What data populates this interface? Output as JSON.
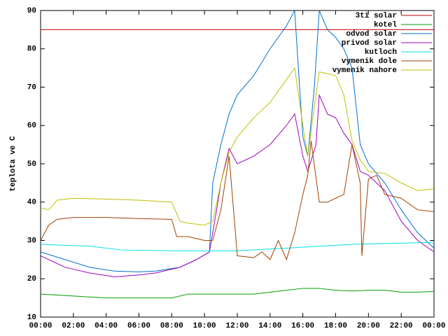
{
  "chart_data": {
    "type": "line",
    "ylabel": "teplota ve C",
    "xlim": [
      0,
      24
    ],
    "ylim": [
      10,
      90
    ],
    "xticks": [
      {
        "value": 0,
        "label": "00:00"
      },
      {
        "value": 2,
        "label": "02:00"
      },
      {
        "value": 4,
        "label": "04:00"
      },
      {
        "value": 6,
        "label": "06:00"
      },
      {
        "value": 8,
        "label": "08:00"
      },
      {
        "value": 10,
        "label": "10:00"
      },
      {
        "value": 12,
        "label": "12:00"
      },
      {
        "value": 14,
        "label": "14:00"
      },
      {
        "value": 16,
        "label": "16:00"
      },
      {
        "value": 18,
        "label": "18:00"
      },
      {
        "value": 20,
        "label": "20:00"
      },
      {
        "value": 22,
        "label": "22:00"
      },
      {
        "value": 24,
        "label": "00:00"
      }
    ],
    "yticks": [
      10,
      20,
      30,
      40,
      50,
      60,
      70,
      80,
      90
    ],
    "legend": "top-right",
    "series": [
      {
        "name": "3ti solar",
        "color": "#c00000",
        "x": [
          0,
          24
        ],
        "values": [
          85,
          85
        ]
      },
      {
        "name": "kotel",
        "color": "#00a000",
        "x": [
          0,
          2,
          4,
          8,
          9,
          13,
          14,
          15,
          16,
          17,
          18,
          19,
          20,
          21,
          22,
          23,
          24
        ],
        "values": [
          16,
          15.5,
          15,
          15,
          16,
          16,
          16.5,
          17,
          17.5,
          17.5,
          17,
          16.8,
          17,
          17,
          16.5,
          16.5,
          16.7
        ]
      },
      {
        "name": "odvod solar",
        "color": "#0070d0",
        "x": [
          0,
          1.5,
          3,
          4.5,
          6,
          7,
          8.5,
          9.5,
          10.3,
          10.5,
          11,
          11.5,
          12,
          13,
          14,
          15,
          15.5,
          16,
          16.3,
          16.7,
          17,
          17.5,
          18,
          18.5,
          19,
          19.5,
          20,
          21,
          22,
          23,
          24
        ],
        "values": [
          27,
          25,
          23,
          22,
          21.8,
          22,
          23,
          25,
          27,
          45,
          55,
          63,
          68,
          73,
          80,
          86,
          90,
          57,
          52,
          70,
          90,
          85,
          83,
          80,
          75,
          55,
          50,
          45,
          38,
          32,
          28
        ]
      },
      {
        "name": "privod solar",
        "color": "#a000c0",
        "x": [
          0,
          1.5,
          3,
          4.5,
          6,
          7,
          8.5,
          9.5,
          10.3,
          10.7,
          11,
          11.5,
          12,
          13,
          14,
          15,
          15.5,
          16,
          16.3,
          16.8,
          17,
          17.5,
          18,
          18.5,
          19,
          19.5,
          20,
          21,
          22,
          23,
          24
        ],
        "values": [
          26,
          23,
          21.5,
          20.5,
          21,
          21.5,
          23,
          25,
          27,
          37,
          45,
          54,
          50,
          52,
          55,
          60,
          63,
          52,
          48,
          55,
          68,
          63,
          62,
          58,
          55,
          48,
          47,
          43,
          35,
          30,
          27
        ]
      },
      {
        "name": "kutloch",
        "color": "#00e0e0",
        "x": [
          0,
          3,
          5,
          8,
          12,
          15,
          17,
          19,
          22,
          24
        ],
        "values": [
          29,
          28.5,
          27.5,
          27.3,
          27.3,
          28,
          28.5,
          29,
          29.3,
          29.5
        ]
      },
      {
        "name": "vymenik dole",
        "color": "#a04000",
        "x": [
          0,
          0.5,
          1,
          2,
          4,
          6,
          8,
          8.3,
          9,
          10,
          10.5,
          11,
          11.5,
          12,
          13,
          13.5,
          14,
          14.5,
          15,
          15.5,
          16,
          16.3,
          16.5,
          17,
          17.5,
          18.5,
          19,
          19.5,
          19.6,
          20,
          20.5,
          21,
          22,
          23,
          24
        ],
        "values": [
          30,
          34,
          35.5,
          36,
          36,
          35.7,
          35.5,
          31,
          31,
          30,
          30,
          38,
          52,
          26,
          25.5,
          27,
          25,
          30,
          25,
          32,
          42,
          47,
          56,
          40,
          40,
          42,
          55,
          45,
          26,
          46,
          47,
          42,
          41,
          38,
          37.5
        ]
      },
      {
        "name": "vymenik nahore",
        "color": "#c0c000",
        "x": [
          0,
          0.5,
          1,
          2,
          4,
          6,
          8,
          8.5,
          9,
          10,
          10.5,
          11,
          11.5,
          12,
          13,
          14,
          15,
          15.5,
          16,
          16.3,
          16.7,
          17,
          18,
          18.5,
          19,
          19.5,
          20,
          21,
          22,
          23,
          24
        ],
        "values": [
          38.5,
          38,
          40.5,
          41,
          40.8,
          40.5,
          40,
          35,
          34.5,
          34,
          35,
          45,
          53,
          57,
          62,
          66,
          72,
          75,
          60,
          52,
          65,
          74,
          73,
          68,
          56,
          51,
          48,
          47.5,
          45,
          43,
          43.5
        ]
      }
    ]
  }
}
